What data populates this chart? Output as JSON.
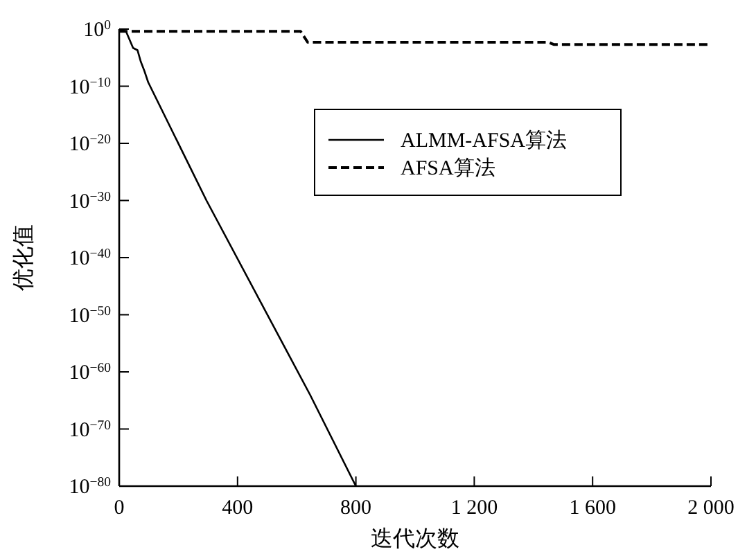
{
  "chart_data": {
    "type": "line",
    "xlabel": "迭代次数",
    "ylabel": "优化值",
    "log": "y",
    "legend": "top right",
    "grid": false,
    "xlim": [
      0,
      2000
    ],
    "xticks": [
      0,
      400,
      800,
      {
        "value": 1200,
        "label": "1 200"
      },
      {
        "value": 1600,
        "label": "1 600"
      },
      {
        "value": 2000,
        "label": "2 000"
      }
    ],
    "ylim": [
      1e-80,
      1
    ],
    "yticks": [
      {
        "value": 1,
        "label": "10$^{0}$"
      },
      {
        "value": 1e-10,
        "label": "10$^{−10}$"
      },
      {
        "value": 1e-20,
        "label": "10$^{−20}$"
      },
      {
        "value": 1e-30,
        "label": "10$^{−30}$"
      },
      {
        "value": 1e-40,
        "label": "10$^{−40}$"
      },
      {
        "value": 1e-50,
        "label": "10$^{−50}$"
      },
      {
        "value": 1e-60,
        "label": "10$^{−60}$"
      },
      {
        "value": 1e-70,
        "label": "10$^{−70}$"
      },
      {
        "value": 1e-80,
        "label": "10$^{−80}$"
      }
    ],
    "series": [
      {
        "name": "ALMM-AFSA算法",
        "color": "#000000",
        "line_style": "solid",
        "x": [
          0,
          23,
          47,
          62,
          73,
          85,
          98,
          295,
          645,
          800
        ],
        "values": [
          1,
          0.4,
          0.0005,
          0.0002,
          2e-06,
          5e-08,
          5e-10,
          1e-30,
          1e-64,
          1e-80
        ]
      },
      {
        "name": "AFSA算法",
        "color": "#000000",
        "line_style": "dashed",
        "x": [
          0,
          613,
          637,
          1450,
          1470,
          2000
        ],
        "values": [
          0.4,
          0.4,
          0.005,
          0.005,
          0.002,
          0.002
        ]
      }
    ]
  }
}
